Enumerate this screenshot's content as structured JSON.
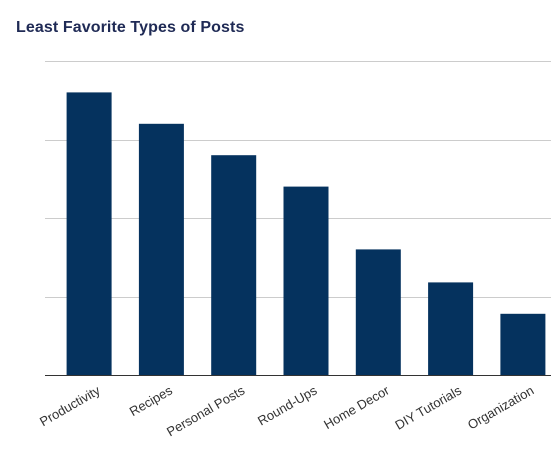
{
  "chart_data": {
    "type": "bar",
    "title": "Least Favorite Types of Posts",
    "categories": [
      "Productivity",
      "Recipes",
      "Personal Posts",
      "Round-Ups",
      "Home Decor",
      "DIY Tutorials",
      "Organization"
    ],
    "values": [
      90,
      80,
      70,
      60,
      40,
      29.5,
      19.5
    ],
    "ylim": [
      0,
      100
    ],
    "grid": true,
    "legend": "none",
    "bar_color": "#05325e",
    "grid_color": "#cccccc",
    "axis_color": "#333333",
    "title_color": "#1f2a55"
  }
}
